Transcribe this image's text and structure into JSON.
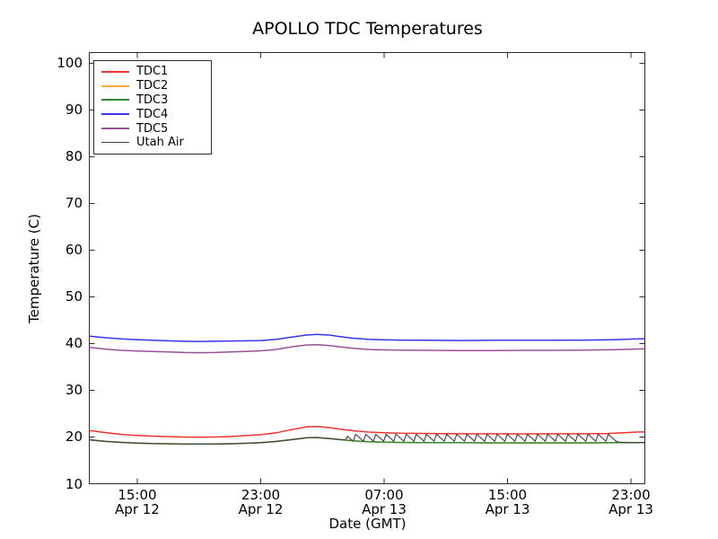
{
  "chart_data": {
    "type": "line",
    "title": "APOLLO TDC Temperatures",
    "xlabel": "Date (GMT)",
    "ylabel": "Temperature (C)",
    "x_unit": "hours since Apr 12 00:00 GMT",
    "xlim": [
      11.89,
      47.9
    ],
    "ylim": [
      10,
      102.3
    ],
    "grid": false,
    "legend_position": "upper left",
    "frame_color": "#2b2b2b",
    "background_color": "#ffffff",
    "y_ticks": [
      10,
      20,
      30,
      40,
      50,
      60,
      70,
      80,
      90,
      100
    ],
    "x_ticks": [
      {
        "t": 15,
        "time": "15:00",
        "date": "Apr 12"
      },
      {
        "t": 23,
        "time": "23:00",
        "date": "Apr 12"
      },
      {
        "t": 31,
        "time": "07:00",
        "date": "Apr 13"
      },
      {
        "t": 39,
        "time": "15:00",
        "date": "Apr 13"
      },
      {
        "t": 47,
        "time": "23:00",
        "date": "Apr 13"
      }
    ],
    "series": [
      {
        "name": "TDC1",
        "color": "#ee3333",
        "width": 1.5,
        "points": [
          [
            11.9,
            21.4
          ],
          [
            13,
            20.9
          ],
          [
            14,
            20.55
          ],
          [
            15,
            20.35
          ],
          [
            16,
            20.2
          ],
          [
            17,
            20.1
          ],
          [
            18,
            20.0
          ],
          [
            19,
            19.95
          ],
          [
            20,
            20.0
          ],
          [
            21,
            20.1
          ],
          [
            22,
            20.3
          ],
          [
            23,
            20.5
          ],
          [
            24,
            20.9
          ],
          [
            25,
            21.6
          ],
          [
            26,
            22.2
          ],
          [
            26.7,
            22.25
          ],
          [
            27.5,
            22.0
          ],
          [
            28,
            21.75
          ],
          [
            29,
            21.35
          ],
          [
            30,
            21.05
          ],
          [
            31,
            20.9
          ],
          [
            32,
            20.8
          ],
          [
            33,
            20.78
          ],
          [
            34,
            20.75
          ],
          [
            35,
            20.72
          ],
          [
            36,
            20.7
          ],
          [
            38,
            20.7
          ],
          [
            40,
            20.68
          ],
          [
            42,
            20.7
          ],
          [
            44,
            20.7
          ],
          [
            45.5,
            20.75
          ],
          [
            46.5,
            20.9
          ],
          [
            47.3,
            21.05
          ],
          [
            47.9,
            21.1
          ]
        ]
      },
      {
        "name": "TDC2",
        "color": "#ffaa33",
        "width": 1.5,
        "note": "coincides with TDC3 and is hidden beneath it",
        "points": [
          [
            11.9,
            19.4
          ],
          [
            13,
            19.05
          ],
          [
            14,
            18.85
          ],
          [
            15,
            18.7
          ],
          [
            16,
            18.6
          ],
          [
            17,
            18.55
          ],
          [
            18,
            18.5
          ],
          [
            19,
            18.5
          ],
          [
            20,
            18.5
          ],
          [
            21,
            18.55
          ],
          [
            22,
            18.65
          ],
          [
            23,
            18.8
          ],
          [
            24,
            19.05
          ],
          [
            25,
            19.45
          ],
          [
            26,
            19.85
          ],
          [
            26.6,
            19.9
          ],
          [
            27.5,
            19.65
          ],
          [
            28,
            19.5
          ],
          [
            29,
            19.2
          ],
          [
            30,
            19.0
          ],
          [
            31,
            18.9
          ],
          [
            32,
            18.85
          ],
          [
            34,
            18.8
          ],
          [
            36,
            18.78
          ],
          [
            38,
            18.75
          ],
          [
            40,
            18.75
          ],
          [
            42,
            18.75
          ],
          [
            44,
            18.75
          ],
          [
            46,
            18.78
          ],
          [
            47,
            18.8
          ],
          [
            47.9,
            18.82
          ]
        ]
      },
      {
        "name": "TDC3",
        "color": "#2d8b2d",
        "width": 1.5,
        "points": [
          [
            11.9,
            19.4
          ],
          [
            13,
            19.05
          ],
          [
            14,
            18.85
          ],
          [
            15,
            18.7
          ],
          [
            16,
            18.6
          ],
          [
            17,
            18.55
          ],
          [
            18,
            18.5
          ],
          [
            19,
            18.5
          ],
          [
            20,
            18.5
          ],
          [
            21,
            18.55
          ],
          [
            22,
            18.65
          ],
          [
            23,
            18.8
          ],
          [
            24,
            19.05
          ],
          [
            25,
            19.45
          ],
          [
            26,
            19.85
          ],
          [
            26.6,
            19.9
          ],
          [
            27.5,
            19.65
          ],
          [
            28,
            19.5
          ],
          [
            29,
            19.2
          ],
          [
            30,
            19.0
          ],
          [
            31,
            18.9
          ],
          [
            32,
            18.85
          ],
          [
            34,
            18.8
          ],
          [
            36,
            18.78
          ],
          [
            38,
            18.75
          ],
          [
            40,
            18.75
          ],
          [
            42,
            18.75
          ],
          [
            44,
            18.75
          ],
          [
            46,
            18.78
          ],
          [
            47,
            18.8
          ],
          [
            47.9,
            18.82
          ]
        ]
      },
      {
        "name": "TDC4",
        "color": "#3535f0",
        "width": 1.5,
        "points": [
          [
            11.9,
            41.6
          ],
          [
            13,
            41.25
          ],
          [
            14,
            41.0
          ],
          [
            15,
            40.85
          ],
          [
            16,
            40.7
          ],
          [
            17,
            40.6
          ],
          [
            18,
            40.5
          ],
          [
            19,
            40.45
          ],
          [
            20,
            40.5
          ],
          [
            21,
            40.55
          ],
          [
            22,
            40.6
          ],
          [
            23,
            40.65
          ],
          [
            24,
            40.9
          ],
          [
            25,
            41.4
          ],
          [
            26,
            41.85
          ],
          [
            26.7,
            41.95
          ],
          [
            27.5,
            41.8
          ],
          [
            28,
            41.55
          ],
          [
            29,
            41.15
          ],
          [
            30,
            40.9
          ],
          [
            31,
            40.8
          ],
          [
            32,
            40.75
          ],
          [
            34,
            40.7
          ],
          [
            36,
            40.65
          ],
          [
            38,
            40.7
          ],
          [
            40,
            40.7
          ],
          [
            42,
            40.72
          ],
          [
            44,
            40.75
          ],
          [
            46,
            40.85
          ],
          [
            47,
            40.95
          ],
          [
            47.9,
            41.05
          ]
        ]
      },
      {
        "name": "TDC5",
        "color": "#9b4f9b",
        "width": 1.5,
        "points": [
          [
            11.9,
            39.2
          ],
          [
            13,
            38.8
          ],
          [
            14,
            38.55
          ],
          [
            15,
            38.4
          ],
          [
            16,
            38.3
          ],
          [
            17,
            38.2
          ],
          [
            18,
            38.1
          ],
          [
            19,
            38.05
          ],
          [
            20,
            38.1
          ],
          [
            21,
            38.2
          ],
          [
            22,
            38.3
          ],
          [
            23,
            38.45
          ],
          [
            24,
            38.75
          ],
          [
            25,
            39.3
          ],
          [
            26,
            39.7
          ],
          [
            26.7,
            39.75
          ],
          [
            27.5,
            39.55
          ],
          [
            28,
            39.35
          ],
          [
            29,
            39.0
          ],
          [
            30,
            38.75
          ],
          [
            31,
            38.65
          ],
          [
            32,
            38.6
          ],
          [
            34,
            38.55
          ],
          [
            36,
            38.5
          ],
          [
            38,
            38.5
          ],
          [
            40,
            38.55
          ],
          [
            42,
            38.55
          ],
          [
            44,
            38.6
          ],
          [
            46,
            38.7
          ],
          [
            47,
            38.8
          ],
          [
            47.9,
            38.9
          ]
        ]
      },
      {
        "name": "Utah Air",
        "color": "#404040",
        "width": 1.1,
        "note": "tracks TDC3, then sawtooth cycling ~19.1 to ~20.6 from ~04:30 to ~22:00 Apr 13",
        "points": [
          [
            11.9,
            19.4
          ],
          [
            13,
            19.05
          ],
          [
            14,
            18.85
          ],
          [
            15,
            18.7
          ],
          [
            16,
            18.6
          ],
          [
            17,
            18.55
          ],
          [
            18,
            18.5
          ],
          [
            19,
            18.5
          ],
          [
            20,
            18.5
          ],
          [
            21,
            18.55
          ],
          [
            22,
            18.65
          ],
          [
            23,
            18.8
          ],
          [
            24,
            19.05
          ],
          [
            25,
            19.45
          ],
          [
            26,
            19.85
          ],
          [
            26.6,
            19.9
          ],
          [
            27.5,
            19.65
          ],
          [
            28,
            19.5
          ],
          [
            28.4,
            19.38
          ],
          [
            28.5,
            19.35
          ],
          [
            28.62,
            20.15
          ],
          [
            29.0,
            19.1
          ],
          [
            29.15,
            20.6
          ],
          [
            29.66,
            19.1
          ],
          [
            29.81,
            20.6
          ],
          [
            30.31,
            19.1
          ],
          [
            30.46,
            20.6
          ],
          [
            30.97,
            19.1
          ],
          [
            31.12,
            20.6
          ],
          [
            31.62,
            19.1
          ],
          [
            31.77,
            20.6
          ],
          [
            32.28,
            19.1
          ],
          [
            32.43,
            20.6
          ],
          [
            32.93,
            19.1
          ],
          [
            33.08,
            20.6
          ],
          [
            33.59,
            19.1
          ],
          [
            33.74,
            20.6
          ],
          [
            34.24,
            19.1
          ],
          [
            34.39,
            20.6
          ],
          [
            34.9,
            19.1
          ],
          [
            35.05,
            20.6
          ],
          [
            35.55,
            19.1
          ],
          [
            35.7,
            20.6
          ],
          [
            36.21,
            19.1
          ],
          [
            36.36,
            20.6
          ],
          [
            36.86,
            19.1
          ],
          [
            37.01,
            20.6
          ],
          [
            37.52,
            19.1
          ],
          [
            37.67,
            20.6
          ],
          [
            38.17,
            19.1
          ],
          [
            38.32,
            20.6
          ],
          [
            38.83,
            19.1
          ],
          [
            38.98,
            20.6
          ],
          [
            39.48,
            19.1
          ],
          [
            39.63,
            20.6
          ],
          [
            40.14,
            19.1
          ],
          [
            40.29,
            20.6
          ],
          [
            40.79,
            19.1
          ],
          [
            40.94,
            20.6
          ],
          [
            41.45,
            19.1
          ],
          [
            41.6,
            20.6
          ],
          [
            42.1,
            19.1
          ],
          [
            42.25,
            20.6
          ],
          [
            42.76,
            19.1
          ],
          [
            42.91,
            20.6
          ],
          [
            43.41,
            19.1
          ],
          [
            43.56,
            20.6
          ],
          [
            44.07,
            19.1
          ],
          [
            44.22,
            20.6
          ],
          [
            44.72,
            19.1
          ],
          [
            44.87,
            20.6
          ],
          [
            45.38,
            19.1
          ],
          [
            45.53,
            20.6
          ],
          [
            46.03,
            19.1
          ],
          [
            46.2,
            18.9
          ],
          [
            47,
            18.82
          ],
          [
            47.9,
            18.82
          ]
        ]
      }
    ]
  }
}
